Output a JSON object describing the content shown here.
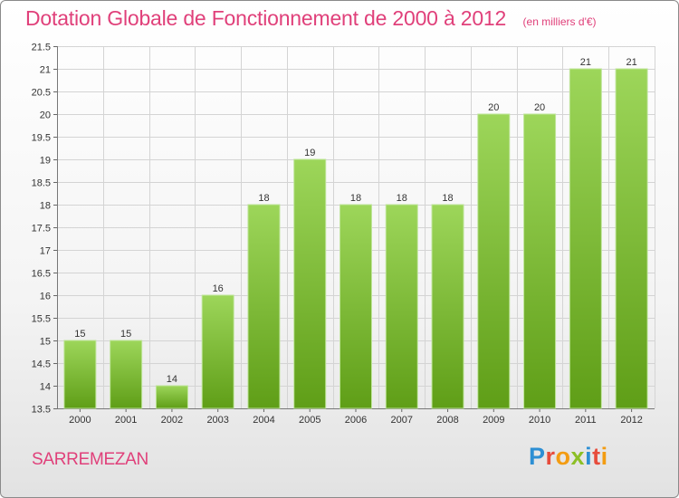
{
  "header": {
    "title": "Dotation Globale de Fonctionnement de 2000 à 2012",
    "subtitle": "(en milliers d'€)"
  },
  "footer": {
    "municipality": "SARREMEZAN",
    "logo_text": "Proxiti"
  },
  "chart_data": {
    "type": "bar",
    "title": "Dotation Globale de Fonctionnement de 2000 à 2012",
    "subtitle": "(en milliers d'€)",
    "categories": [
      "2000",
      "2001",
      "2002",
      "2003",
      "2004",
      "2005",
      "2006",
      "2007",
      "2008",
      "2009",
      "2010",
      "2011",
      "2012"
    ],
    "values": [
      15,
      15,
      14,
      16,
      18,
      19,
      18,
      18,
      18,
      20,
      20,
      21,
      21
    ],
    "data_labels": [
      "15",
      "15",
      "14",
      "16",
      "18",
      "19",
      "18",
      "18",
      "18",
      "20",
      "20",
      "21",
      "21"
    ],
    "ylim": [
      13.5,
      21.5
    ],
    "yticks": [
      13.5,
      14,
      14.5,
      15,
      15.5,
      16,
      16.5,
      17,
      17.5,
      18,
      18.5,
      19,
      19.5,
      20,
      20.5,
      21,
      21.5
    ],
    "ytick_labels": [
      "13.5",
      "14",
      "14.5",
      "15",
      "15.5",
      "16",
      "16.5",
      "17",
      "17.5",
      "18",
      "18.5",
      "19",
      "19.5",
      "20",
      "20.5",
      "21",
      "21.5"
    ],
    "grid": true,
    "bar_color_top": "#9dd65a",
    "bar_color_bottom": "#5f9e17",
    "xlabel": "",
    "ylabel": ""
  }
}
